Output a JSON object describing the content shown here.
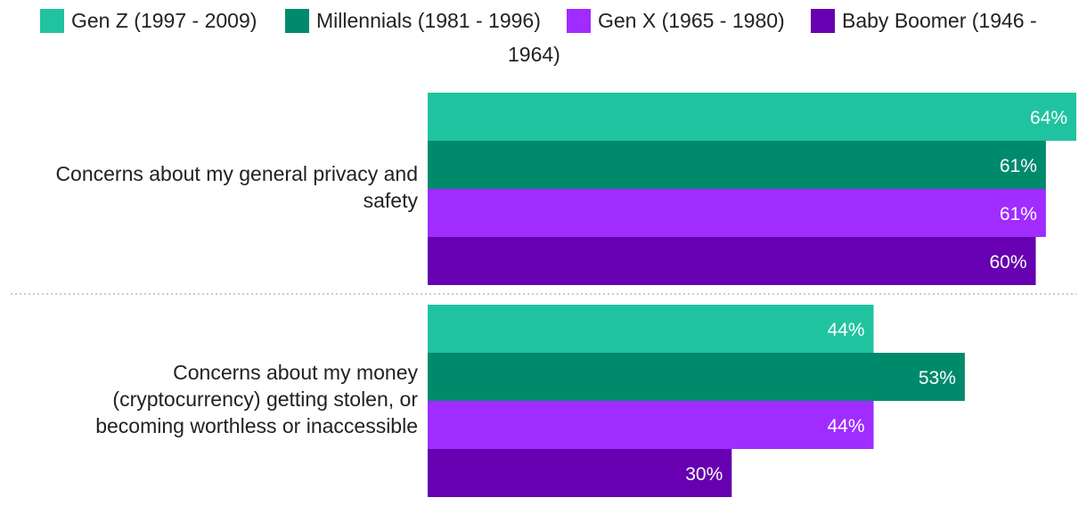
{
  "legend": [
    {
      "name": "Gen Z (1997 - 2009)",
      "color": "#20c3a0"
    },
    {
      "name": "Millennials (1981 - 1996)",
      "color": "#008a6c"
    },
    {
      "name": "Gen X (1965 - 1980)",
      "color": "#a02cff"
    },
    {
      "name": "Baby Boomer (1946 - 1964)",
      "color": "#6600b0"
    }
  ],
  "legend_text": {
    "gen_z": "Gen Z (1997 - 2009)",
    "millennials": "Millennials (1981 - 1996)",
    "gen_x": "Gen X (1965 - 1980)",
    "boomer_line1": "Baby Boomer (1946 -",
    "boomer_line2": "1964)"
  },
  "categories": {
    "cat1_line1": "Concerns about my general privacy and",
    "cat1_line2": "safety",
    "cat2_line1": "Concerns about my money",
    "cat2_line2": "(cryptocurrency) getting stolen, or",
    "cat2_line3": "becoming worthless or inaccessible"
  },
  "chart_data": {
    "type": "bar",
    "orientation": "horizontal",
    "categories": [
      "Concerns about my general privacy and safety",
      "Concerns about my money (cryptocurrency) getting stolen, or becoming worthless or inaccessible"
    ],
    "series": [
      {
        "name": "Gen Z (1997 - 2009)",
        "color": "#20c3a0",
        "values": [
          64,
          44
        ]
      },
      {
        "name": "Millennials (1981 - 1996)",
        "color": "#008a6c",
        "values": [
          61,
          53
        ]
      },
      {
        "name": "Gen X (1965 - 1980)",
        "color": "#a02cff",
        "values": [
          61,
          44
        ]
      },
      {
        "name": "Baby Boomer (1946 - 1964)",
        "color": "#6600b0",
        "values": [
          60,
          30
        ]
      }
    ],
    "value_suffix": "%",
    "xlim": [
      0,
      64
    ],
    "legend_position": "top",
    "grid": false
  }
}
